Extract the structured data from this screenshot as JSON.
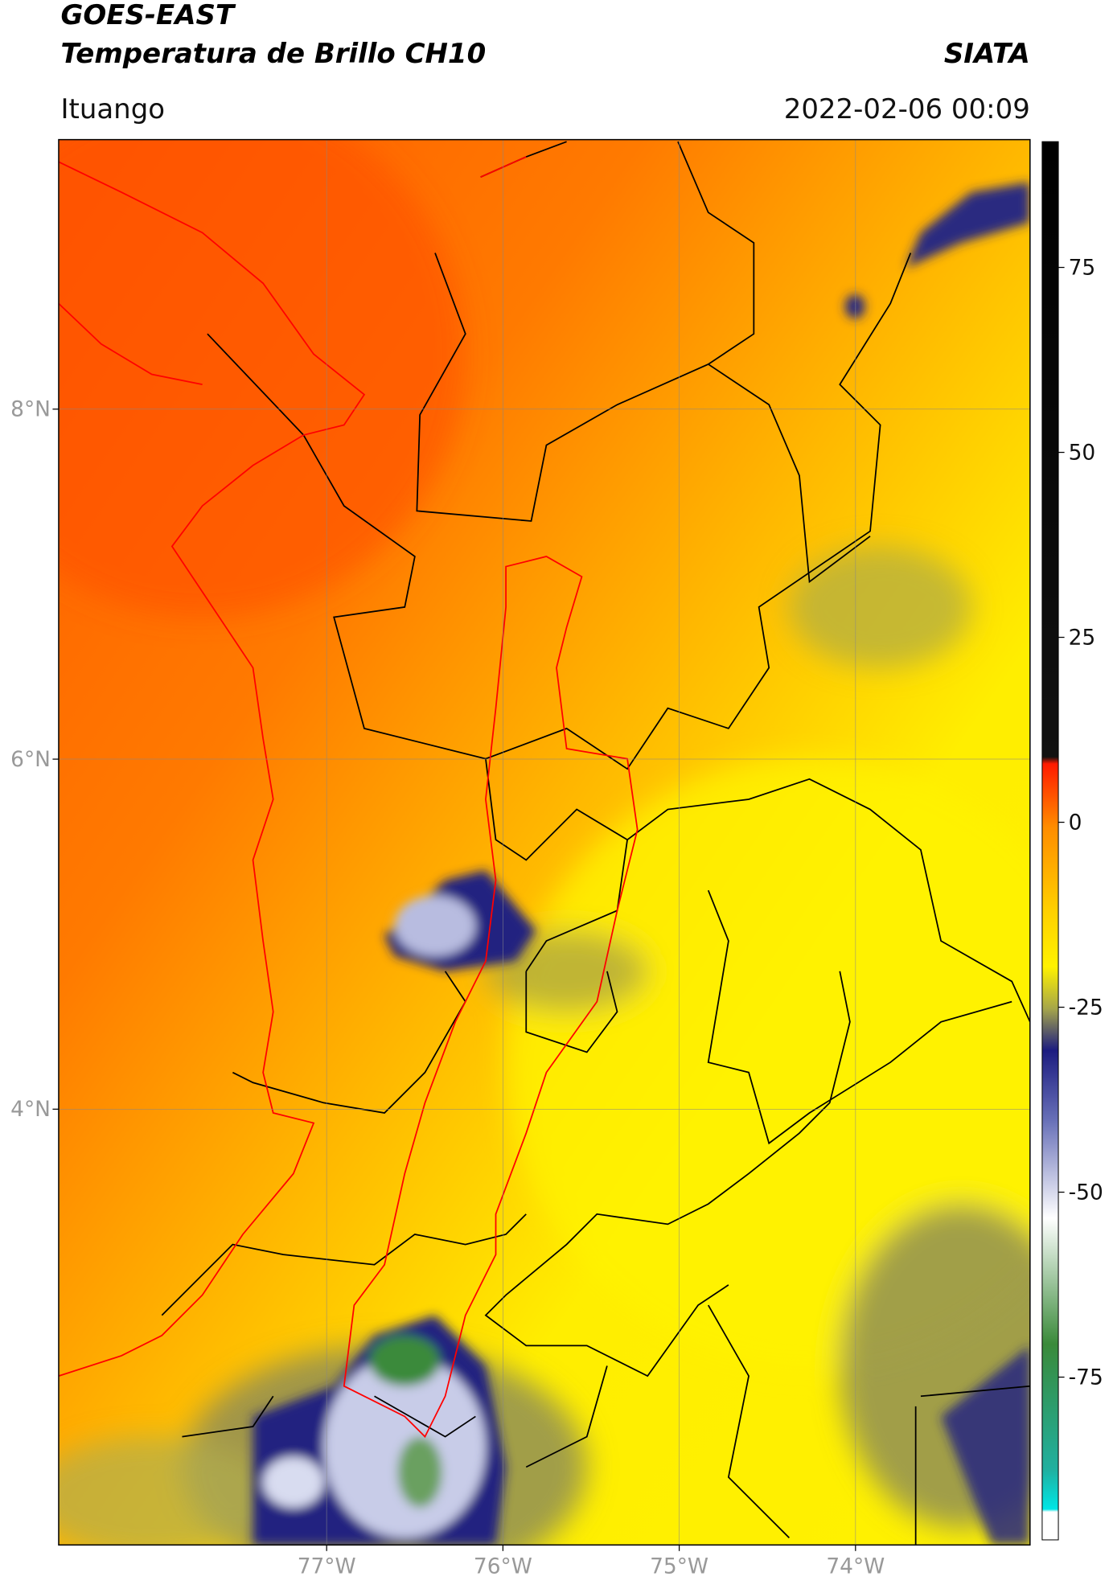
{
  "header": {
    "title": "GOES-EAST",
    "subtitle": "Temperatura de Brillo CH10",
    "source": "SIATA",
    "location": "Ituango",
    "datetime": "2022-02-06 00:09"
  },
  "map": {
    "lonlim": [
      -78.52,
      -73.01
    ],
    "latlim": [
      1.51,
      9.54
    ],
    "lonticks": [
      {
        "value": -77,
        "label": "77°W"
      },
      {
        "value": -76,
        "label": "76°W"
      },
      {
        "value": -75,
        "label": "75°W"
      },
      {
        "value": -74,
        "label": "74°W"
      }
    ],
    "latticks": [
      {
        "value": 8,
        "label": "8°N"
      },
      {
        "value": 6,
        "label": "6°N"
      },
      {
        "value": 4,
        "label": "4°N"
      }
    ],
    "grid": true
  },
  "colorbar": {
    "lim": [
      -97,
      92
    ],
    "ticks": [
      75,
      50,
      25,
      0,
      -25,
      -50,
      -75
    ]
  }
}
